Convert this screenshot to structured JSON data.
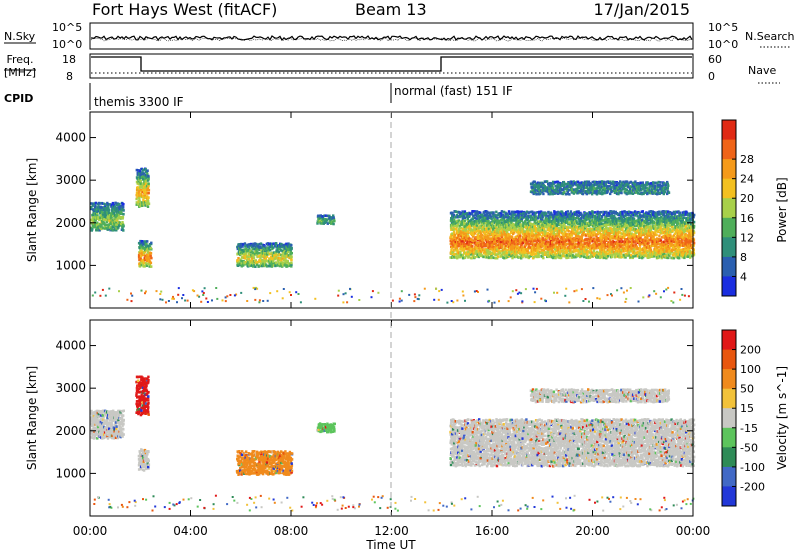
{
  "header": {
    "station": "Fort Hays West (fitACF)",
    "beam": "Beam 13",
    "date": "17/Jan/2015"
  },
  "noise_panel": {
    "left_label": "N.Sky",
    "right_label": "N.Search",
    "left_ticks": [
      "10^5",
      "10^0"
    ],
    "right_ticks": [
      "10^5",
      "10^0"
    ]
  },
  "freq_panel": {
    "left_label_line1": "Freq.",
    "left_label_line2": "[MHz]",
    "right_label": "Nave",
    "left_ticks": [
      "18",
      "8"
    ],
    "right_ticks": [
      "60",
      "0"
    ]
  },
  "cpid_panel": {
    "label": "CPID",
    "segments": [
      {
        "label": "themis 3300 IF",
        "start_hour": 0.0
      },
      {
        "label": "normal (fast) 151 IF",
        "start_hour": 12.0
      }
    ]
  },
  "chart_data": [
    {
      "type": "heatmap",
      "name": "power",
      "ylabel": "Slant Range [km]",
      "yticks": [
        1000,
        2000,
        3000,
        4000
      ],
      "ylim": [
        0,
        4600
      ],
      "xlim": [
        0,
        24
      ],
      "colorbar_label": "Power [dB]",
      "colorbar_ticks": [
        "4",
        "8",
        "12",
        "16",
        "20",
        "24",
        "28"
      ],
      "colorbar_colors": [
        "#1a2ee0",
        "#2a5fb0",
        "#2f8f7a",
        "#4fae5a",
        "#a8d04a",
        "#f3c020",
        "#f59a1a",
        "#ef6418",
        "#e02a14"
      ],
      "regions": [
        {
          "x0": 0.0,
          "x1": 1.3,
          "y0": 1850,
          "y1": 2500,
          "level": 3
        },
        {
          "x0": 1.8,
          "x1": 2.3,
          "y0": 2400,
          "y1": 3300,
          "level": 5
        },
        {
          "x0": 1.9,
          "x1": 2.4,
          "y0": 1000,
          "y1": 1600,
          "level": 6
        },
        {
          "x0": 5.8,
          "x1": 8.0,
          "y0": 1000,
          "y1": 1550,
          "level": 4
        },
        {
          "x0": 9.0,
          "x1": 9.7,
          "y0": 2000,
          "y1": 2200,
          "level": 2
        },
        {
          "x0": 14.3,
          "x1": 24.0,
          "y0": 1200,
          "y1": 2300,
          "level": 6
        },
        {
          "x0": 17.5,
          "x1": 23.0,
          "y0": 2700,
          "y1": 3000,
          "level": 1
        }
      ]
    },
    {
      "type": "heatmap",
      "name": "velocity",
      "ylabel": "Slant Range [km]",
      "yticks": [
        1000,
        2000,
        3000,
        4000
      ],
      "ylim": [
        0,
        4600
      ],
      "xlim": [
        0,
        24
      ],
      "xlabel": "Time UT",
      "xticks": [
        "00:00",
        "04:00",
        "08:00",
        "12:00",
        "16:00",
        "20:00",
        "00:00"
      ],
      "colorbar_label": "Velocity [m s^-1]",
      "colorbar_ticks": [
        "200",
        "100",
        "50",
        "15",
        "-15",
        "-50",
        "-100",
        "-200"
      ],
      "colorbar_colors": [
        "#2238d8",
        "#4169c6",
        "#2e8b57",
        "#5cc45c",
        "#c8c8c4",
        "#f2c23a",
        "#f08a1c",
        "#e8560e",
        "#e01818"
      ],
      "regions": [
        {
          "x0": 0.0,
          "x1": 1.3,
          "y0": 1850,
          "y1": 2500,
          "color": "#c8c8c4"
        },
        {
          "x0": 1.8,
          "x1": 2.3,
          "y0": 2400,
          "y1": 3300,
          "color": "#e01818"
        },
        {
          "x0": 1.9,
          "x1": 2.3,
          "y0": 1100,
          "y1": 1600,
          "color": "#c8c8c4"
        },
        {
          "x0": 5.8,
          "x1": 8.0,
          "y0": 1000,
          "y1": 1550,
          "color": "#f08a1c"
        },
        {
          "x0": 9.0,
          "x1": 9.7,
          "y0": 2000,
          "y1": 2200,
          "color": "#5cc45c"
        },
        {
          "x0": 14.3,
          "x1": 24.0,
          "y0": 1200,
          "y1": 2300,
          "color": "#c8c8c4"
        },
        {
          "x0": 17.5,
          "x1": 23.0,
          "y0": 2700,
          "y1": 3000,
          "color": "#c8c8c4"
        }
      ]
    }
  ]
}
